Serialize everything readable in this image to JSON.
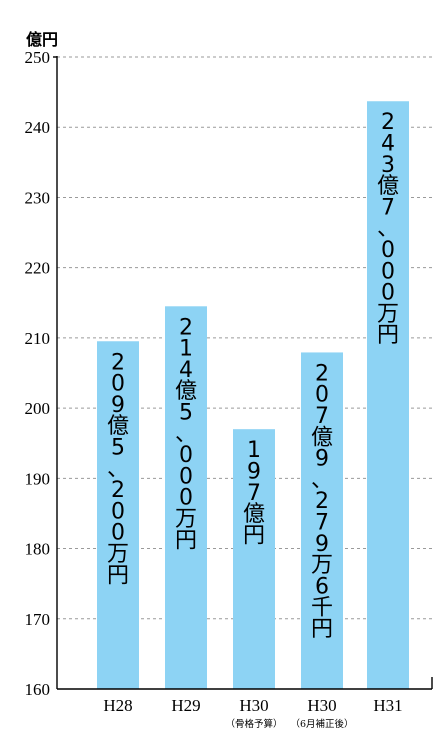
{
  "chart_data": {
    "type": "bar",
    "unit_label": "億円",
    "categories": [
      "H28",
      "H29",
      "H30",
      "H30",
      "H31"
    ],
    "category_sublabels": [
      "",
      "",
      "（骨格予算）",
      "（6月補正後）",
      ""
    ],
    "values": [
      209.52,
      214.5,
      197,
      207.928,
      243.7
    ],
    "value_labels": [
      "209億5、200万円",
      "214億5、000万円",
      "197億円",
      "207億9、279万6千円",
      "243億7、000万円"
    ],
    "ylim": [
      160,
      250
    ],
    "yticks": [
      160,
      170,
      180,
      190,
      200,
      210,
      220,
      230,
      240,
      250
    ],
    "grid": true,
    "bar_color": "#8dd3f4"
  }
}
